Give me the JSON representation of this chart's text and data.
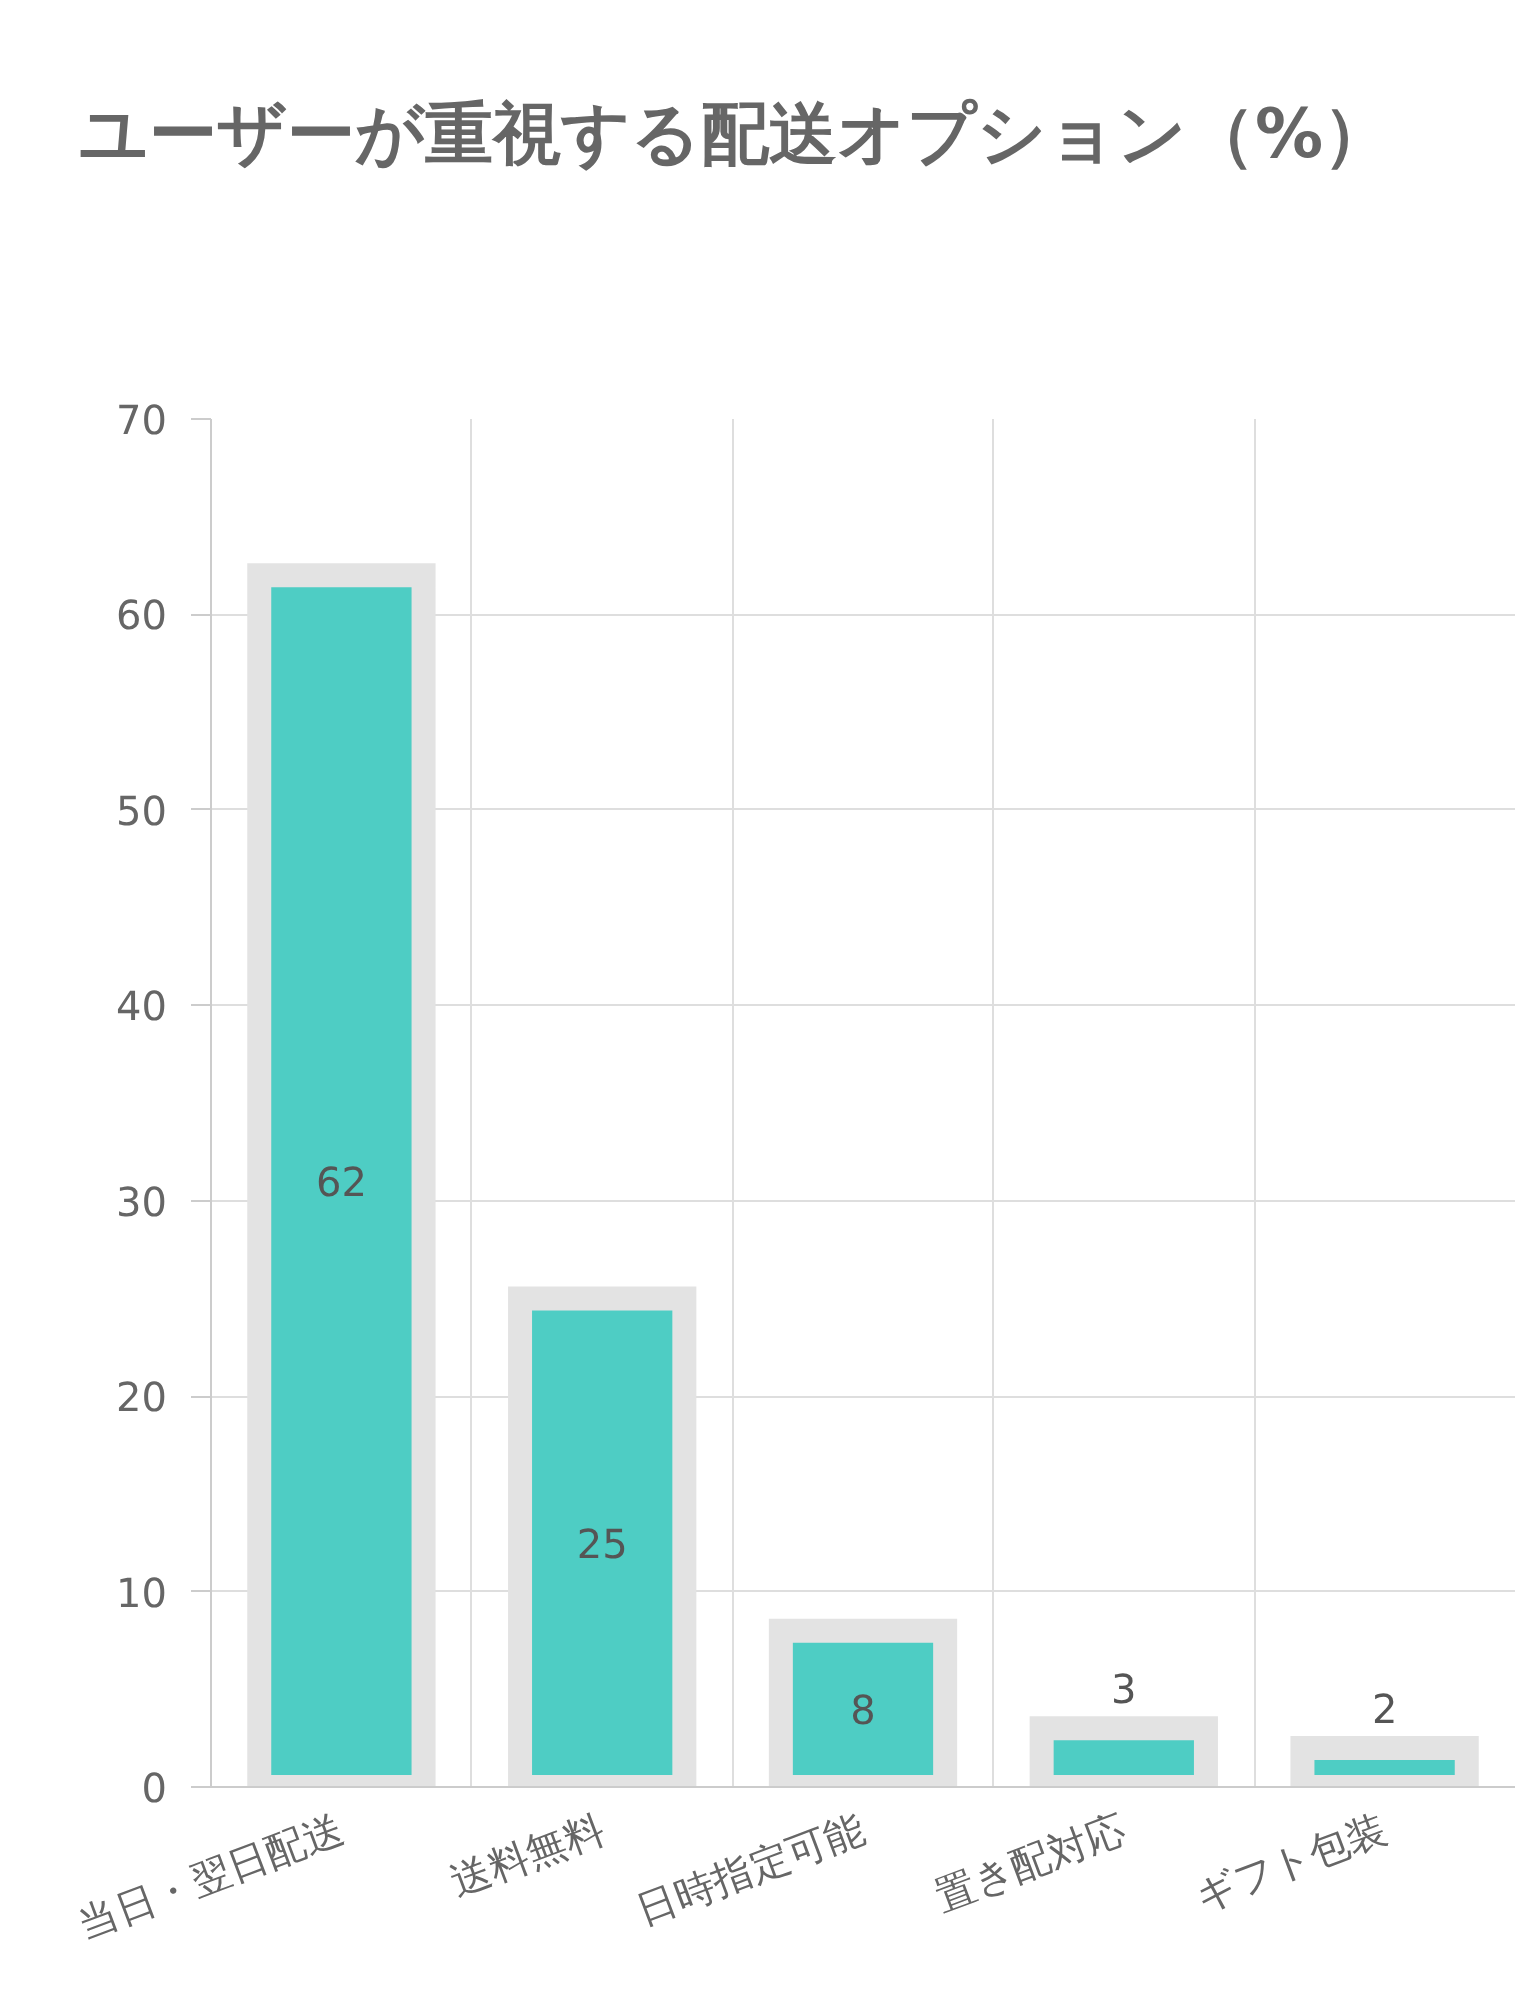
{
  "chart_data": {
    "type": "bar",
    "title": "ユーザーが重視する配送オプション（%）",
    "categories": [
      "当日・翌日配送",
      "送料無料",
      "日時指定可能",
      "置き配対応",
      "ギフト包装"
    ],
    "values": [
      62,
      25,
      8,
      3,
      2
    ],
    "color": "#4ecdc4",
    "ylim": [
      0,
      70
    ],
    "yticks": [
      0,
      10,
      20,
      30,
      40,
      50,
      60,
      70
    ],
    "grid": true,
    "data_labels": true
  }
}
